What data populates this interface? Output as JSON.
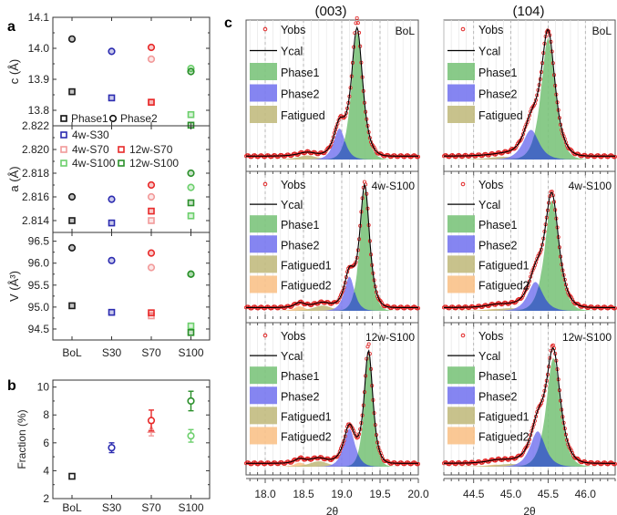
{
  "chart_data": [
    {
      "id": "a",
      "panel_label": "a",
      "type": "scatter",
      "categories": [
        "BoL",
        "S30",
        "S70",
        "S100"
      ],
      "xlabel": "",
      "subplots": [
        {
          "id": "c",
          "ylabel": "c (Å)",
          "ylim": [
            13.75,
            14.1
          ],
          "yticks": [
            "14.1",
            "14.0",
            "13.9",
            "13.8"
          ],
          "ytick_values": [
            14.1,
            14.0,
            13.9,
            13.8
          ],
          "legend": [
            {
              "label": "Phase1",
              "marker": "square",
              "color": "#000000"
            },
            {
              "label": "Phase2",
              "marker": "circle",
              "color": "#000000"
            }
          ],
          "series": [
            {
              "name": "BoL Phase1",
              "marker": "square",
              "color": "#1a1a1a",
              "cat": 0,
              "value": 13.86
            },
            {
              "name": "BoL Phase2",
              "marker": "circle",
              "color": "#1a1a1a",
              "cat": 0,
              "value": 14.03
            },
            {
              "name": "4w-S30 Phase1",
              "marker": "square",
              "color": "#2b2bb0",
              "cat": 1,
              "value": 13.84
            },
            {
              "name": "4w-S30 Phase2",
              "marker": "circle",
              "color": "#2b2bb0",
              "cat": 1,
              "value": 13.99
            },
            {
              "name": "4w-S70 Phase1",
              "marker": "square",
              "color": "#f29a9a",
              "cat": 2,
              "value": 13.826
            },
            {
              "name": "4w-S70 Phase2",
              "marker": "circle",
              "color": "#f29a9a",
              "cat": 2,
              "value": 13.965
            },
            {
              "name": "12w-S70 Phase1",
              "marker": "square",
              "color": "#e82a2a",
              "cat": 2,
              "value": 13.826
            },
            {
              "name": "12w-S70 Phase2",
              "marker": "circle",
              "color": "#e82a2a",
              "cat": 2,
              "value": 14.003
            },
            {
              "name": "4w-S100 Phase1",
              "marker": "square",
              "color": "#6ccf6c",
              "cat": 3,
              "value": 13.786
            },
            {
              "name": "4w-S100 Phase2",
              "marker": "circle",
              "color": "#6ccf6c",
              "cat": 3,
              "value": 13.935
            },
            {
              "name": "12w-S100 Phase1",
              "marker": "square",
              "color": "#2a8f2a",
              "cat": 3,
              "value": 13.752
            },
            {
              "name": "12w-S100 Phase2",
              "marker": "circle",
              "color": "#2a8f2a",
              "cat": 3,
              "value": 13.925
            }
          ]
        },
        {
          "id": "a",
          "ylabel": "a (Å)",
          "ylim": [
            2.813,
            2.822
          ],
          "yticks": [
            "2.822",
            "2.820",
            "2.818",
            "2.816",
            "2.814"
          ],
          "ytick_values": [
            2.822,
            2.82,
            2.818,
            2.816,
            2.814
          ],
          "legend": [
            {
              "label": "4w-S30",
              "marker": "square",
              "color": "#2b2bb0"
            },
            {
              "label": "4w-S70",
              "marker": "square",
              "color": "#f29a9a"
            },
            {
              "label": "12w-S70",
              "marker": "square",
              "color": "#e82a2a"
            },
            {
              "label": "4w-S100",
              "marker": "square",
              "color": "#6ccf6c"
            },
            {
              "label": "12w-S100",
              "marker": "square",
              "color": "#2a8f2a"
            }
          ],
          "series": [
            {
              "name": "BoL Phase1",
              "marker": "square",
              "color": "#1a1a1a",
              "cat": 0,
              "value": 2.814
            },
            {
              "name": "BoL Phase2",
              "marker": "circle",
              "color": "#1a1a1a",
              "cat": 0,
              "value": 2.816
            },
            {
              "name": "4w-S30 Phase1",
              "marker": "square",
              "color": "#2b2bb0",
              "cat": 1,
              "value": 2.8138
            },
            {
              "name": "4w-S30 Phase2",
              "marker": "circle",
              "color": "#2b2bb0",
              "cat": 1,
              "value": 2.8158
            },
            {
              "name": "4w-S70 Phase1",
              "marker": "square",
              "color": "#f29a9a",
              "cat": 2,
              "value": 2.814
            },
            {
              "name": "4w-S70 Phase2",
              "marker": "circle",
              "color": "#f29a9a",
              "cat": 2,
              "value": 2.816
            },
            {
              "name": "12w-S70 Phase1",
              "marker": "square",
              "color": "#e82a2a",
              "cat": 2,
              "value": 2.8148
            },
            {
              "name": "12w-S70 Phase2",
              "marker": "circle",
              "color": "#e82a2a",
              "cat": 2,
              "value": 2.817
            },
            {
              "name": "4w-S100 Phase1",
              "marker": "square",
              "color": "#6ccf6c",
              "cat": 3,
              "value": 2.8144
            },
            {
              "name": "4w-S100 Phase2",
              "marker": "circle",
              "color": "#6ccf6c",
              "cat": 3,
              "value": 2.8168
            },
            {
              "name": "12w-S100 Phase1",
              "marker": "square",
              "color": "#2a8f2a",
              "cat": 3,
              "value": 2.8155
            },
            {
              "name": "12w-S100 Phase2",
              "marker": "circle",
              "color": "#2a8f2a",
              "cat": 3,
              "value": 2.818
            }
          ]
        },
        {
          "id": "V",
          "ylabel": "V (Å³)",
          "ylim": [
            94.25,
            96.7
          ],
          "yticks": [
            "96.5",
            "96.0",
            "95.5",
            "95.0",
            "94.5"
          ],
          "ytick_values": [
            96.5,
            96.0,
            95.5,
            95.0,
            94.5
          ],
          "series": [
            {
              "name": "BoL Phase1",
              "marker": "square",
              "color": "#1a1a1a",
              "cat": 0,
              "value": 95.03
            },
            {
              "name": "BoL Phase2",
              "marker": "circle",
              "color": "#1a1a1a",
              "cat": 0,
              "value": 96.35
            },
            {
              "name": "4w-S30 Phase1",
              "marker": "square",
              "color": "#2b2bb0",
              "cat": 1,
              "value": 94.88
            },
            {
              "name": "4w-S30 Phase2",
              "marker": "circle",
              "color": "#2b2bb0",
              "cat": 1,
              "value": 96.06
            },
            {
              "name": "4w-S70 Phase1",
              "marker": "square",
              "color": "#f29a9a",
              "cat": 2,
              "value": 94.8
            },
            {
              "name": "4w-S70 Phase2",
              "marker": "circle",
              "color": "#f29a9a",
              "cat": 2,
              "value": 95.9
            },
            {
              "name": "12w-S70 Phase1",
              "marker": "square",
              "color": "#e82a2a",
              "cat": 2,
              "value": 94.87
            },
            {
              "name": "12w-S70 Phase2",
              "marker": "circle",
              "color": "#e82a2a",
              "cat": 2,
              "value": 96.23
            },
            {
              "name": "4w-S100 Phase1",
              "marker": "square",
              "color": "#6ccf6c",
              "cat": 3,
              "value": 94.57
            },
            {
              "name": "4w-S100 Phase2",
              "marker": "circle",
              "color": "#6ccf6c",
              "cat": 3,
              "value": 95.75
            },
            {
              "name": "12w-S100 Phase1",
              "marker": "square",
              "color": "#2a8f2a",
              "cat": 3,
              "value": 94.42
            },
            {
              "name": "12w-S100 Phase2",
              "marker": "circle",
              "color": "#2a8f2a",
              "cat": 3,
              "value": 95.75
            }
          ]
        }
      ]
    },
    {
      "id": "b",
      "panel_label": "b",
      "type": "scatter",
      "categories": [
        "BoL",
        "S30",
        "S70",
        "S100"
      ],
      "ylabel": "Fraction (%)",
      "ylim": [
        2,
        10.5
      ],
      "yticks": [
        "10",
        "8",
        "6",
        "4",
        "2"
      ],
      "ytick_values": [
        10,
        8,
        6,
        4,
        2
      ],
      "series": [
        {
          "name": "BoL",
          "marker": "square",
          "color": "#1a1a1a",
          "cat": 0,
          "value": 3.6,
          "err": 0.05
        },
        {
          "name": "4w-S30",
          "marker": "circle",
          "color": "#2b2bb0",
          "cat": 1,
          "value": 5.65,
          "err": 0.35
        },
        {
          "name": "4w-S70",
          "marker": "triangle",
          "color": "#f29a9a",
          "cat": 2,
          "value": 6.95,
          "err": 0.45
        },
        {
          "name": "12w-S70",
          "marker": "circle",
          "color": "#e82a2a",
          "cat": 2,
          "value": 7.6,
          "err": 0.75
        },
        {
          "name": "4w-S100",
          "marker": "circle",
          "color": "#6ccf6c",
          "cat": 3,
          "value": 6.5,
          "err": 0.45
        },
        {
          "name": "12w-S100",
          "marker": "circle",
          "color": "#2a8f2a",
          "cat": 3,
          "value": 9.0,
          "err": 0.7
        }
      ]
    },
    {
      "id": "c",
      "panel_label": "c",
      "type": "line",
      "xlabel": "2θ",
      "columns": [
        {
          "title": "(003)",
          "xlim": [
            17.75,
            20.0
          ],
          "xticks": [
            "18.0",
            "18.5",
            "19.0",
            "19.5",
            "20.0"
          ],
          "xtick_values": [
            18.0,
            18.5,
            19.0,
            19.5,
            20.0
          ],
          "dashed_lines": [
            18.0,
            18.5,
            19.0,
            19.5
          ],
          "rows": [
            {
              "sample": "BoL",
              "legend": [
                "Yobs",
                "Ycal",
                "Phase1",
                "Phase2",
                "Fatigued"
              ],
              "peaks": [
                {
                  "name": "Phase1",
                  "center": 19.2,
                  "height": 0.94,
                  "width": 0.11
                },
                {
                  "name": "Phase2",
                  "center": 18.97,
                  "height": 0.23,
                  "width": 0.11
                },
                {
                  "name": "Fatigued",
                  "center": 18.55,
                  "height": 0.03,
                  "width": 0.18
                }
              ],
              "yobs_peak_excess": 0.08
            },
            {
              "sample": "4w-S100",
              "legend": [
                "Yobs",
                "Ycal",
                "Phase1",
                "Phase2",
                "Fatigued1",
                "Fatigued2"
              ],
              "peaks": [
                {
                  "name": "Phase1",
                  "center": 19.3,
                  "height": 0.92,
                  "width": 0.095
                },
                {
                  "name": "Phase2",
                  "center": 19.1,
                  "height": 0.26,
                  "width": 0.1
                },
                {
                  "name": "Fatigued1",
                  "center": 18.75,
                  "height": 0.04,
                  "width": 0.18
                },
                {
                  "name": "Fatigued2",
                  "center": 18.45,
                  "height": 0.035,
                  "width": 0.1
                }
              ],
              "yobs_peak_excess": 0.03
            },
            {
              "sample": "12w-S100",
              "legend": [
                "Yobs",
                "Ycal",
                "Phase1",
                "Phase2",
                "Fatigued1",
                "Fatigued2"
              ],
              "peaks": [
                {
                  "name": "Phase1",
                  "center": 19.35,
                  "height": 0.82,
                  "width": 0.085
                },
                {
                  "name": "Phase2",
                  "center": 19.1,
                  "height": 0.28,
                  "width": 0.11
                },
                {
                  "name": "Fatigued1",
                  "center": 18.7,
                  "height": 0.04,
                  "width": 0.18
                },
                {
                  "name": "Fatigued2",
                  "center": 18.45,
                  "height": 0.03,
                  "width": 0.1
                }
              ],
              "yobs_peak_excess": 0.05
            }
          ]
        },
        {
          "title": "(104)",
          "xlim": [
            44.1,
            46.4
          ],
          "xticks": [
            "44.5",
            "45.0",
            "45.5",
            "46.0"
          ],
          "xtick_values": [
            44.5,
            45.0,
            45.5,
            46.0
          ],
          "dashed_lines": [
            44.5,
            45.0,
            45.5,
            46.0
          ],
          "rows": [
            {
              "sample": "BoL",
              "legend": [
                "Yobs",
                "Ycal",
                "Phase1",
                "Phase2",
                "Fatigued"
              ],
              "peaks": [
                {
                  "name": "Phase1",
                  "center": 45.5,
                  "height": 0.9,
                  "width": 0.14
                },
                {
                  "name": "Phase2",
                  "center": 45.27,
                  "height": 0.22,
                  "width": 0.16
                },
                {
                  "name": "Fatigued",
                  "center": 44.9,
                  "height": 0.02,
                  "width": 0.3
                }
              ],
              "yobs_peak_excess": 0.0
            },
            {
              "sample": "4w-S100",
              "legend": [
                "Yobs",
                "Ycal",
                "Phase1",
                "Phase2",
                "Fatigued1",
                "Fatigued2"
              ],
              "peaks": [
                {
                  "name": "Phase1",
                  "center": 45.55,
                  "height": 0.84,
                  "width": 0.14
                },
                {
                  "name": "Phase2",
                  "center": 45.33,
                  "height": 0.22,
                  "width": 0.15
                },
                {
                  "name": "Fatigued1",
                  "center": 45.0,
                  "height": 0.02,
                  "width": 0.3
                },
                {
                  "name": "Fatigued2",
                  "center": 44.8,
                  "height": 0.015,
                  "width": 0.2
                }
              ],
              "yobs_peak_excess": 0.0
            },
            {
              "sample": "12w-S100",
              "legend": [
                "Yobs",
                "Ycal",
                "Phase1",
                "Phase2",
                "Fatigued1",
                "Fatigued2"
              ],
              "peaks": [
                {
                  "name": "Phase1",
                  "center": 45.57,
                  "height": 0.8,
                  "width": 0.14
                },
                {
                  "name": "Phase2",
                  "center": 45.36,
                  "height": 0.26,
                  "width": 0.15
                },
                {
                  "name": "Fatigued1",
                  "center": 45.0,
                  "height": 0.02,
                  "width": 0.3
                },
                {
                  "name": "Fatigued2",
                  "center": 44.8,
                  "height": 0.015,
                  "width": 0.2
                }
              ],
              "yobs_peak_excess": 0.02
            }
          ]
        }
      ],
      "colors": {
        "Yobs": "#e02020",
        "Ycal": "#000000",
        "Phase1": "#7cc47c",
        "Phase2": "#7878f0",
        "Phase2_overlap": "#4060c8",
        "Fatigued": "#c2bb80",
        "Fatigued1": "#c2bb80",
        "Fatigued2": "#f9c28a"
      }
    }
  ]
}
